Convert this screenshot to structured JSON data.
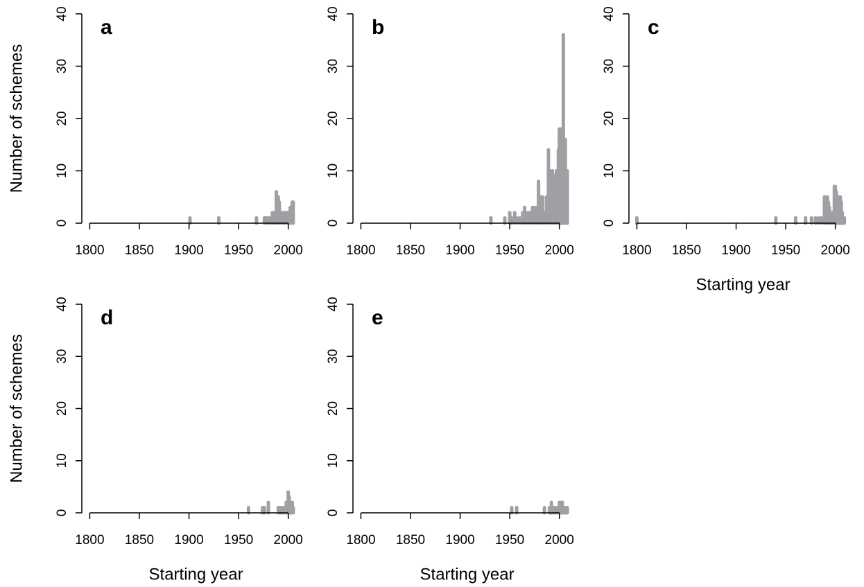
{
  "chart_data": [
    {
      "type": "bar",
      "title": "a",
      "ylabel": "Number of schemes",
      "color": "#a0a0a4",
      "x": [
        1901,
        1930,
        1968,
        1976,
        1978,
        1980,
        1982,
        1984,
        1986,
        1988,
        1990,
        1991,
        1993,
        1995,
        1997,
        1999,
        2001,
        2002,
        2004,
        2005
      ],
      "values": [
        1,
        1,
        1,
        1,
        1,
        1,
        1,
        2,
        2,
        6,
        5,
        4,
        2,
        2,
        2,
        2,
        2,
        3,
        4,
        4
      ],
      "xlim": [
        1792,
        2010
      ],
      "xticks": [
        1800,
        1850,
        1900,
        1950,
        2000
      ],
      "ylim": [
        0,
        40
      ],
      "yticks": [
        0,
        10,
        20,
        30,
        40
      ]
    },
    {
      "type": "bar",
      "title": "b",
      "color": "#a0a0a4",
      "x": [
        1931,
        1945,
        1950,
        1952,
        1955,
        1957,
        1960,
        1963,
        1965,
        1967,
        1969,
        1971,
        1973,
        1975,
        1977,
        1979,
        1981,
        1983,
        1985,
        1987,
        1989,
        1991,
        1993,
        1995,
        1997,
        1999,
        2000,
        2001,
        2002,
        2003,
        2004,
        2005,
        2006,
        2007,
        2008
      ],
      "values": [
        1,
        1,
        2,
        1,
        2,
        1,
        1,
        2,
        3,
        2,
        2,
        2,
        3,
        3,
        3,
        8,
        5,
        5,
        2,
        5,
        14,
        10,
        10,
        9,
        10,
        14,
        18,
        18,
        10,
        16,
        36,
        14,
        16,
        10,
        10
      ],
      "xlim": [
        1792,
        2010
      ],
      "xticks": [
        1800,
        1850,
        1900,
        1950,
        2000
      ],
      "ylim": [
        0,
        40
      ],
      "yticks": [
        0,
        10,
        20,
        30,
        40
      ]
    },
    {
      "type": "bar",
      "title": "c",
      "xlabel": "Starting year",
      "color": "#a0a0a4",
      "x": [
        1800,
        1940,
        1960,
        1970,
        1976,
        1980,
        1983,
        1986,
        1989,
        1990,
        1991,
        1992,
        1993,
        1994,
        1995,
        1997,
        1999,
        2000,
        2001,
        2002,
        2003,
        2004,
        2005,
        2006,
        2007,
        2008,
        2009
      ],
      "values": [
        1,
        1,
        1,
        1,
        1,
        1,
        1,
        1,
        5,
        4,
        5,
        5,
        4,
        3,
        2,
        2,
        7,
        7,
        6,
        5,
        4,
        5,
        5,
        4,
        2,
        1,
        1
      ],
      "xlim": [
        1792,
        2010
      ],
      "xticks": [
        1800,
        1850,
        1900,
        1950,
        2000
      ],
      "ylim": [
        0,
        40
      ],
      "yticks": [
        0,
        10,
        20,
        30,
        40
      ]
    },
    {
      "type": "bar",
      "title": "d",
      "ylabel": "Number of schemes",
      "xlabel": "Starting year",
      "color": "#a0a0a4",
      "x": [
        1960,
        1974,
        1976,
        1980,
        1990,
        1992,
        1994,
        1996,
        1998,
        2000,
        2001,
        2002,
        2003,
        2004,
        2005
      ],
      "values": [
        1,
        1,
        1,
        2,
        1,
        1,
        1,
        1,
        2,
        4,
        3,
        2,
        1,
        2,
        1
      ],
      "xlim": [
        1792,
        2010
      ],
      "xticks": [
        1800,
        1850,
        1900,
        1950,
        2000
      ],
      "ylim": [
        0,
        40
      ],
      "yticks": [
        0,
        10,
        20,
        30,
        40
      ]
    },
    {
      "type": "bar",
      "title": "e",
      "xlabel": "Starting year",
      "color": "#a0a0a4",
      "x": [
        1952,
        1957,
        1985,
        1990,
        1992,
        1994,
        1996,
        1998,
        2000,
        2002,
        2003,
        2004,
        2006,
        2007,
        2008
      ],
      "values": [
        1,
        1,
        1,
        1,
        2,
        1,
        1,
        1,
        2,
        2,
        2,
        1,
        1,
        1,
        1
      ],
      "xlim": [
        1792,
        2010
      ],
      "xticks": [
        1800,
        1850,
        1900,
        1950,
        2000
      ],
      "ylim": [
        0,
        40
      ],
      "yticks": [
        0,
        10,
        20,
        30,
        40
      ]
    }
  ]
}
